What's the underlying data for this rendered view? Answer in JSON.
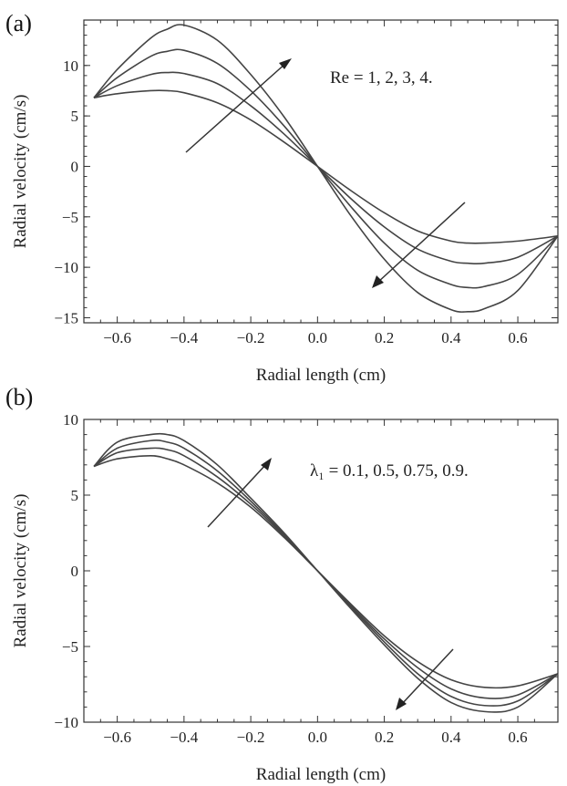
{
  "chart_data": [
    {
      "panel_label": "(a)",
      "type": "line",
      "xlabel": "Radial length (cm)",
      "ylabel": "Radial velocity (cm/s)",
      "xlim": [
        -0.7,
        0.72
      ],
      "ylim": [
        -15.5,
        14.5
      ],
      "xticks": [
        -0.6,
        -0.4,
        -0.2,
        0.0,
        0.2,
        0.4,
        0.6
      ],
      "xtick_labels": [
        "−0.6",
        "−0.4",
        "−0.2",
        "0.0",
        "0.2",
        "0.4",
        "0.6"
      ],
      "yticks": [
        -15,
        -10,
        -5,
        0,
        5,
        10
      ],
      "ytick_labels": [
        "−15",
        "−10",
        "−5",
        "0",
        "5",
        "10"
      ],
      "annotation": "Re = 1, 2, 3, 4.",
      "series": [
        {
          "x": [
            -0.67,
            -0.6,
            -0.5,
            -0.45,
            -0.4,
            -0.3,
            -0.2,
            -0.1,
            0.0,
            0.1,
            0.2,
            0.3,
            0.4,
            0.45,
            0.5,
            0.6,
            0.72
          ],
          "y": [
            6.8,
            7.2,
            7.5,
            7.5,
            7.3,
            6.3,
            4.6,
            2.4,
            0.0,
            -2.4,
            -4.6,
            -6.4,
            -7.4,
            -7.6,
            -7.6,
            -7.4,
            -6.9
          ]
        },
        {
          "x": [
            -0.67,
            -0.6,
            -0.5,
            -0.45,
            -0.4,
            -0.3,
            -0.2,
            -0.1,
            0.0,
            0.1,
            0.2,
            0.3,
            0.4,
            0.45,
            0.5,
            0.6,
            0.72
          ],
          "y": [
            6.8,
            8.0,
            9.1,
            9.3,
            9.2,
            8.2,
            6.0,
            3.2,
            0.0,
            -3.2,
            -6.0,
            -8.2,
            -9.4,
            -9.6,
            -9.6,
            -9.0,
            -6.9
          ]
        },
        {
          "x": [
            -0.67,
            -0.6,
            -0.5,
            -0.45,
            -0.4,
            -0.3,
            -0.2,
            -0.1,
            0.0,
            0.1,
            0.2,
            0.3,
            0.4,
            0.45,
            0.5,
            0.6,
            0.72
          ],
          "y": [
            6.8,
            8.8,
            10.9,
            11.4,
            11.5,
            10.2,
            7.5,
            4.0,
            0.0,
            -4.0,
            -7.6,
            -10.3,
            -11.7,
            -12.0,
            -11.9,
            -10.7,
            -6.9
          ]
        },
        {
          "x": [
            -0.67,
            -0.6,
            -0.5,
            -0.45,
            -0.4,
            -0.3,
            -0.2,
            -0.1,
            0.0,
            0.1,
            0.2,
            0.3,
            0.4,
            0.45,
            0.5,
            0.6,
            0.72
          ],
          "y": [
            6.8,
            9.6,
            12.7,
            13.6,
            14.0,
            12.5,
            9.1,
            4.9,
            0.0,
            -4.9,
            -9.2,
            -12.5,
            -14.2,
            -14.4,
            -14.1,
            -12.3,
            -6.9
          ]
        }
      ]
    },
    {
      "panel_label": "(b)",
      "type": "line",
      "xlabel": "Radial length (cm)",
      "ylabel": "Radial velocity (cm/s)",
      "xlim": [
        -0.7,
        0.72
      ],
      "ylim": [
        -10,
        10
      ],
      "xticks": [
        -0.6,
        -0.4,
        -0.2,
        0.0,
        0.2,
        0.4,
        0.6
      ],
      "xtick_labels": [
        "−0.6",
        "−0.4",
        "−0.2",
        "0.0",
        "0.2",
        "0.4",
        "0.6"
      ],
      "yticks": [
        -10,
        -5,
        0,
        5,
        10
      ],
      "ytick_labels": [
        "−10",
        "−5",
        "0",
        "5",
        "10"
      ],
      "annotation": "λ₁ = 0.1, 0.5, 0.75, 0.9.",
      "series": [
        {
          "x": [
            -0.67,
            -0.6,
            -0.5,
            -0.45,
            -0.4,
            -0.3,
            -0.2,
            -0.1,
            0.0,
            0.1,
            0.2,
            0.3,
            0.4,
            0.5,
            0.6,
            0.72
          ],
          "y": [
            6.9,
            7.4,
            7.6,
            7.4,
            7.0,
            5.8,
            4.2,
            2.2,
            0.0,
            -2.2,
            -4.3,
            -6.0,
            -7.2,
            -7.7,
            -7.6,
            -6.8
          ]
        },
        {
          "x": [
            -0.67,
            -0.6,
            -0.5,
            -0.45,
            -0.4,
            -0.3,
            -0.2,
            -0.1,
            0.0,
            0.1,
            0.2,
            0.3,
            0.4,
            0.5,
            0.6,
            0.72
          ],
          "y": [
            6.9,
            7.8,
            8.1,
            8.0,
            7.6,
            6.2,
            4.4,
            2.3,
            0.0,
            -2.3,
            -4.5,
            -6.4,
            -7.8,
            -8.4,
            -8.2,
            -6.8
          ]
        },
        {
          "x": [
            -0.67,
            -0.6,
            -0.5,
            -0.45,
            -0.4,
            -0.3,
            -0.2,
            -0.1,
            0.0,
            0.1,
            0.2,
            0.3,
            0.4,
            0.5,
            0.6,
            0.72
          ],
          "y": [
            6.9,
            8.1,
            8.6,
            8.5,
            8.1,
            6.6,
            4.6,
            2.4,
            0.0,
            -2.4,
            -4.7,
            -6.8,
            -8.3,
            -8.9,
            -8.6,
            -6.8
          ]
        },
        {
          "x": [
            -0.67,
            -0.6,
            -0.5,
            -0.45,
            -0.4,
            -0.3,
            -0.2,
            -0.1,
            0.0,
            0.1,
            0.2,
            0.3,
            0.4,
            0.5,
            0.6,
            0.72
          ],
          "y": [
            6.9,
            8.5,
            9.0,
            9.0,
            8.6,
            7.0,
            4.8,
            2.5,
            0.0,
            -2.5,
            -4.9,
            -7.1,
            -8.7,
            -9.3,
            -9.0,
            -6.8
          ]
        }
      ]
    }
  ]
}
